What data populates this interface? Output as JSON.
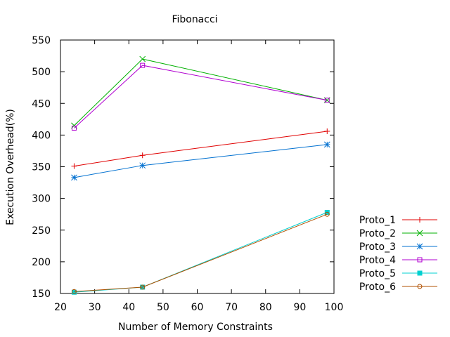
{
  "chart_data": {
    "type": "line",
    "title": "Fibonacci",
    "xlabel": "Number of Memory Constraints",
    "ylabel": "Execution Overhead(%)",
    "xlim": [
      20,
      100
    ],
    "ylim": [
      150,
      550
    ],
    "xticks": [
      20,
      30,
      40,
      50,
      60,
      70,
      80,
      90,
      100
    ],
    "yticks": [
      150,
      200,
      250,
      300,
      350,
      400,
      450,
      500,
      550
    ],
    "grid": false,
    "legend_position": "right-bottom, outside plot",
    "x": [
      24,
      44,
      98
    ],
    "series": [
      {
        "name": "Proto_1",
        "values": [
          351,
          368,
          406
        ],
        "color": "#e00000",
        "marker": "plus"
      },
      {
        "name": "Proto_2",
        "values": [
          415,
          520,
          455
        ],
        "color": "#00b000",
        "marker": "cross"
      },
      {
        "name": "Proto_3",
        "values": [
          333,
          352,
          385
        ],
        "color": "#0070d0",
        "marker": "star"
      },
      {
        "name": "Proto_4",
        "values": [
          411,
          510,
          455
        ],
        "color": "#b000d0",
        "marker": "square-open"
      },
      {
        "name": "Proto_5",
        "values": [
          152,
          160,
          278
        ],
        "color": "#00d0d0",
        "marker": "square-filled"
      },
      {
        "name": "Proto_6",
        "values": [
          153,
          160,
          275
        ],
        "color": "#b05000",
        "marker": "circle-open"
      }
    ]
  }
}
